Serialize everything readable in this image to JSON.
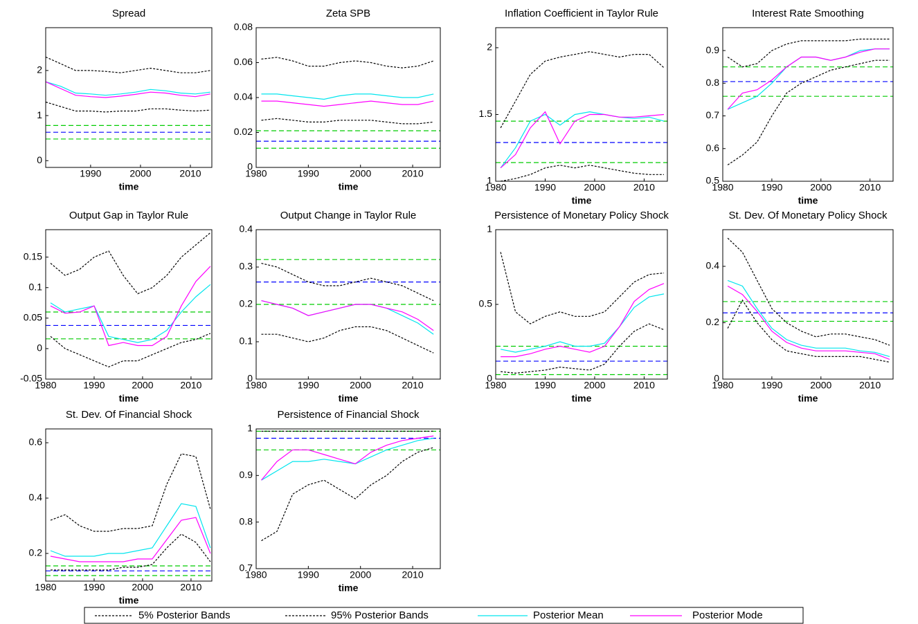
{
  "chart_data": [
    {
      "type": "line",
      "title": "Spread",
      "xlabel": "time",
      "x": [
        1981,
        1984,
        1987,
        1990,
        1993,
        1996,
        1999,
        2002,
        2005,
        2008,
        2011,
        2014
      ],
      "xlim": [
        1981,
        2014.3
      ],
      "xticks": [
        1990,
        2000,
        2010
      ],
      "ylim": [
        -0.15,
        2.95
      ],
      "yticks": [
        0,
        1,
        2
      ],
      "series": [
        {
          "values": [
            1.3,
            1.2,
            1.1,
            1.1,
            1.08,
            1.1,
            1.1,
            1.15,
            1.15,
            1.12,
            1.1,
            1.12
          ]
        },
        {
          "values": [
            2.3,
            2.15,
            2.0,
            2.0,
            1.98,
            1.95,
            2.0,
            2.05,
            2.0,
            1.95,
            1.95,
            2.0
          ]
        },
        {
          "values": [
            1.75,
            1.65,
            1.5,
            1.48,
            1.45,
            1.48,
            1.52,
            1.58,
            1.55,
            1.5,
            1.48,
            1.52
          ]
        },
        {
          "values": [
            1.75,
            1.6,
            1.45,
            1.42,
            1.4,
            1.43,
            1.47,
            1.52,
            1.5,
            1.45,
            1.42,
            1.48
          ]
        }
      ],
      "reference_lines": [
        {
          "value": 0.78,
          "color": "#00cc00"
        },
        {
          "value": 0.63,
          "color": "#0000ff"
        },
        {
          "value": 0.48,
          "color": "#00cc00"
        }
      ]
    },
    {
      "type": "line",
      "title": "Zeta SPB",
      "xlabel": "time",
      "x": [
        1981,
        1984,
        1987,
        1990,
        1993,
        1996,
        1999,
        2002,
        2005,
        2008,
        2011,
        2014
      ],
      "xlim": [
        1980,
        2015.3
      ],
      "xticks": [
        1980,
        1990,
        2000,
        2010
      ],
      "ylim": [
        0,
        0.08
      ],
      "yticks": [
        0,
        0.02,
        0.04,
        0.06,
        0.08
      ],
      "series": [
        {
          "values": [
            0.027,
            0.028,
            0.027,
            0.026,
            0.026,
            0.027,
            0.027,
            0.027,
            0.026,
            0.025,
            0.025,
            0.026
          ]
        },
        {
          "values": [
            0.062,
            0.063,
            0.061,
            0.058,
            0.058,
            0.06,
            0.061,
            0.06,
            0.058,
            0.057,
            0.058,
            0.061
          ]
        },
        {
          "values": [
            0.042,
            0.042,
            0.041,
            0.04,
            0.039,
            0.041,
            0.042,
            0.042,
            0.041,
            0.04,
            0.04,
            0.042
          ]
        },
        {
          "values": [
            0.038,
            0.038,
            0.037,
            0.036,
            0.035,
            0.036,
            0.037,
            0.038,
            0.037,
            0.036,
            0.036,
            0.038
          ]
        }
      ],
      "reference_lines": [
        {
          "value": 0.021,
          "color": "#00cc00"
        },
        {
          "value": 0.015,
          "color": "#0000ff"
        },
        {
          "value": 0.011,
          "color": "#00cc00"
        }
      ]
    },
    {
      "type": "line",
      "title": "Inflation Coefficient in Taylor Rule",
      "xlabel": "time",
      "x": [
        1981,
        1984,
        1987,
        1990,
        1993,
        1996,
        1999,
        2002,
        2005,
        2008,
        2011,
        2014
      ],
      "xlim": [
        1980,
        2014.7
      ],
      "xticks": [
        1980,
        1990,
        2000,
        2010
      ],
      "ylim": [
        1,
        2.15
      ],
      "yticks": [
        1,
        1.5,
        2
      ],
      "series": [
        {
          "values": [
            1.0,
            1.02,
            1.05,
            1.1,
            1.12,
            1.1,
            1.12,
            1.1,
            1.08,
            1.06,
            1.05,
            1.05
          ]
        },
        {
          "values": [
            1.4,
            1.6,
            1.8,
            1.9,
            1.93,
            1.95,
            1.97,
            1.95,
            1.93,
            1.95,
            1.95,
            1.85
          ]
        },
        {
          "values": [
            1.1,
            1.25,
            1.45,
            1.5,
            1.42,
            1.5,
            1.52,
            1.5,
            1.48,
            1.47,
            1.48,
            1.45
          ]
        },
        {
          "values": [
            1.1,
            1.2,
            1.4,
            1.52,
            1.28,
            1.45,
            1.5,
            1.5,
            1.48,
            1.48,
            1.49,
            1.5
          ]
        }
      ],
      "reference_lines": [
        {
          "value": 1.45,
          "color": "#00cc00"
        },
        {
          "value": 1.29,
          "color": "#0000ff"
        },
        {
          "value": 1.14,
          "color": "#00cc00"
        }
      ]
    },
    {
      "type": "line",
      "title": "Interest Rate Smoothing",
      "xlabel": "time",
      "x": [
        1981,
        1984,
        1987,
        1990,
        1993,
        1996,
        1999,
        2002,
        2005,
        2008,
        2011,
        2014
      ],
      "xlim": [
        1980,
        2014.7
      ],
      "xticks": [
        1980,
        1990,
        2000,
        2010
      ],
      "ylim": [
        0.5,
        0.97
      ],
      "yticks": [
        0.5,
        0.6,
        0.7,
        0.8,
        0.9
      ],
      "series": [
        {
          "values": [
            0.55,
            0.58,
            0.62,
            0.7,
            0.77,
            0.8,
            0.82,
            0.84,
            0.85,
            0.86,
            0.87,
            0.87
          ]
        },
        {
          "values": [
            0.88,
            0.85,
            0.86,
            0.9,
            0.92,
            0.93,
            0.93,
            0.93,
            0.93,
            0.935,
            0.935,
            0.935
          ]
        },
        {
          "values": [
            0.72,
            0.74,
            0.76,
            0.8,
            0.85,
            0.88,
            0.88,
            0.87,
            0.88,
            0.9,
            0.905,
            0.905
          ]
        },
        {
          "values": [
            0.72,
            0.77,
            0.78,
            0.81,
            0.85,
            0.88,
            0.88,
            0.87,
            0.88,
            0.895,
            0.905,
            0.905
          ]
        }
      ],
      "reference_lines": [
        {
          "value": 0.85,
          "color": "#00cc00"
        },
        {
          "value": 0.805,
          "color": "#0000ff"
        },
        {
          "value": 0.76,
          "color": "#00cc00"
        }
      ]
    },
    {
      "type": "line",
      "title": "Output Gap in Taylor Rule",
      "xlabel": "time",
      "x": [
        1981,
        1984,
        1987,
        1990,
        1993,
        1996,
        1999,
        2002,
        2005,
        2008,
        2011,
        2014
      ],
      "xlim": [
        1980,
        2014.3
      ],
      "xticks": [
        1980,
        1990,
        2000,
        2010
      ],
      "ylim": [
        -0.05,
        0.195
      ],
      "yticks": [
        -0.05,
        0,
        0.05,
        0.1,
        0.15
      ],
      "series": [
        {
          "values": [
            0.02,
            0.0,
            -0.01,
            -0.02,
            -0.03,
            -0.02,
            -0.02,
            -0.01,
            0.0,
            0.01,
            0.015,
            0.025
          ]
        },
        {
          "values": [
            0.14,
            0.12,
            0.13,
            0.15,
            0.16,
            0.12,
            0.09,
            0.1,
            0.12,
            0.15,
            0.17,
            0.19
          ]
        },
        {
          "values": [
            0.075,
            0.06,
            0.065,
            0.07,
            0.02,
            0.015,
            0.01,
            0.015,
            0.03,
            0.06,
            0.085,
            0.105
          ]
        },
        {
          "values": [
            0.07,
            0.058,
            0.06,
            0.07,
            0.005,
            0.01,
            0.005,
            0.005,
            0.02,
            0.07,
            0.11,
            0.135
          ]
        }
      ],
      "reference_lines": [
        {
          "value": 0.06,
          "color": "#00cc00"
        },
        {
          "value": 0.038,
          "color": "#0000ff"
        },
        {
          "value": 0.016,
          "color": "#00cc00"
        }
      ]
    },
    {
      "type": "line",
      "title": "Output Change in Taylor Rule",
      "xlabel": "time",
      "x": [
        1981,
        1984,
        1987,
        1990,
        1993,
        1996,
        1999,
        2002,
        2005,
        2008,
        2011,
        2014
      ],
      "xlim": [
        1980,
        2015.3
      ],
      "xticks": [
        1980,
        1990,
        2000,
        2010
      ],
      "ylim": [
        0,
        0.4
      ],
      "yticks": [
        0,
        0.1,
        0.2,
        0.3,
        0.4
      ],
      "series": [
        {
          "values": [
            0.12,
            0.12,
            0.11,
            0.1,
            0.11,
            0.13,
            0.14,
            0.14,
            0.13,
            0.11,
            0.09,
            0.07
          ]
        },
        {
          "values": [
            0.31,
            0.3,
            0.28,
            0.26,
            0.25,
            0.25,
            0.26,
            0.27,
            0.26,
            0.25,
            0.23,
            0.21
          ]
        },
        {
          "values": [
            0.21,
            0.2,
            0.19,
            0.17,
            0.18,
            0.19,
            0.2,
            0.2,
            0.19,
            0.17,
            0.15,
            0.12
          ]
        },
        {
          "values": [
            0.21,
            0.2,
            0.19,
            0.17,
            0.18,
            0.19,
            0.2,
            0.2,
            0.19,
            0.18,
            0.16,
            0.13
          ]
        }
      ],
      "reference_lines": [
        {
          "value": 0.32,
          "color": "#00cc00"
        },
        {
          "value": 0.26,
          "color": "#0000ff"
        },
        {
          "value": 0.2,
          "color": "#00cc00"
        }
      ]
    },
    {
      "type": "line",
      "title": "Persistence of Monetary Policy Shock",
      "xlabel": "time",
      "x": [
        1981,
        1984,
        1987,
        1990,
        1993,
        1996,
        1999,
        2002,
        2005,
        2008,
        2011,
        2014
      ],
      "xlim": [
        1980,
        2014.7
      ],
      "xticks": [
        1980,
        1990,
        2000,
        2010
      ],
      "ylim": [
        0,
        1
      ],
      "yticks": [
        0,
        0.5,
        1
      ],
      "series": [
        {
          "values": [
            0.05,
            0.04,
            0.05,
            0.06,
            0.08,
            0.07,
            0.06,
            0.1,
            0.22,
            0.32,
            0.37,
            0.33
          ]
        },
        {
          "values": [
            0.85,
            0.45,
            0.37,
            0.42,
            0.45,
            0.42,
            0.42,
            0.45,
            0.55,
            0.65,
            0.7,
            0.71
          ]
        },
        {
          "values": [
            0.2,
            0.18,
            0.2,
            0.22,
            0.25,
            0.22,
            0.22,
            0.24,
            0.35,
            0.48,
            0.55,
            0.57
          ]
        },
        {
          "values": [
            0.15,
            0.15,
            0.17,
            0.2,
            0.22,
            0.2,
            0.18,
            0.22,
            0.35,
            0.52,
            0.6,
            0.64
          ]
        }
      ],
      "reference_lines": [
        {
          "value": 0.22,
          "color": "#00cc00"
        },
        {
          "value": 0.12,
          "color": "#0000ff"
        },
        {
          "value": 0.03,
          "color": "#00cc00"
        }
      ]
    },
    {
      "type": "line",
      "title": "St. Dev. Of Monetary Policy Shock",
      "xlabel": "time",
      "x": [
        1981,
        1984,
        1987,
        1990,
        1993,
        1996,
        1999,
        2002,
        2005,
        2008,
        2011,
        2014
      ],
      "xlim": [
        1980,
        2014.7
      ],
      "xticks": [
        1980,
        1990,
        2000,
        2010
      ],
      "ylim": [
        0,
        0.53
      ],
      "yticks": [
        0,
        0.2,
        0.4
      ],
      "series": [
        {
          "values": [
            0.18,
            0.28,
            0.2,
            0.14,
            0.1,
            0.09,
            0.08,
            0.08,
            0.08,
            0.08,
            0.07,
            0.06
          ]
        },
        {
          "values": [
            0.5,
            0.45,
            0.35,
            0.25,
            0.2,
            0.17,
            0.15,
            0.16,
            0.16,
            0.15,
            0.14,
            0.12
          ]
        },
        {
          "values": [
            0.35,
            0.33,
            0.25,
            0.18,
            0.14,
            0.12,
            0.11,
            0.11,
            0.11,
            0.1,
            0.095,
            0.08
          ]
        },
        {
          "values": [
            0.33,
            0.3,
            0.24,
            0.17,
            0.13,
            0.11,
            0.1,
            0.1,
            0.1,
            0.095,
            0.09,
            0.07
          ]
        }
      ],
      "reference_lines": [
        {
          "value": 0.275,
          "color": "#00cc00"
        },
        {
          "value": 0.235,
          "color": "#0000ff"
        },
        {
          "value": 0.205,
          "color": "#00cc00"
        }
      ]
    },
    {
      "type": "line",
      "title": "St. Dev. Of Financial Shock",
      "xlabel": "time",
      "x": [
        1981,
        1984,
        1987,
        1990,
        1993,
        1996,
        1999,
        2002,
        2005,
        2008,
        2011,
        2014
      ],
      "xlim": [
        1980,
        2014.3
      ],
      "xticks": [
        1980,
        1990,
        2000,
        2010
      ],
      "ylim": [
        0.1,
        0.65
      ],
      "yticks": [
        0.2,
        0.4,
        0.6
      ],
      "series": [
        {
          "values": [
            0.14,
            0.14,
            0.14,
            0.14,
            0.14,
            0.15,
            0.15,
            0.16,
            0.22,
            0.27,
            0.24,
            0.17
          ]
        },
        {
          "values": [
            0.32,
            0.34,
            0.3,
            0.28,
            0.28,
            0.29,
            0.29,
            0.3,
            0.45,
            0.56,
            0.55,
            0.36
          ]
        },
        {
          "values": [
            0.21,
            0.19,
            0.19,
            0.19,
            0.2,
            0.2,
            0.21,
            0.22,
            0.3,
            0.38,
            0.37,
            0.22
          ]
        },
        {
          "values": [
            0.19,
            0.18,
            0.17,
            0.17,
            0.17,
            0.17,
            0.18,
            0.18,
            0.25,
            0.32,
            0.33,
            0.2
          ]
        }
      ],
      "reference_lines": [
        {
          "value": 0.155,
          "color": "#00cc00"
        },
        {
          "value": 0.137,
          "color": "#0000ff"
        },
        {
          "value": 0.12,
          "color": "#00cc00"
        }
      ]
    },
    {
      "type": "line",
      "title": "Persistence of Financial Shock",
      "xlabel": "time",
      "x": [
        1981,
        1984,
        1987,
        1990,
        1993,
        1996,
        1999,
        2002,
        2005,
        2008,
        2011,
        2014
      ],
      "xlim": [
        1980,
        2015.3
      ],
      "xticks": [
        1980,
        1990,
        2000,
        2010
      ],
      "ylim": [
        0.7,
        1
      ],
      "yticks": [
        0.7,
        0.8,
        0.9,
        1
      ],
      "series": [
        {
          "values": [
            0.76,
            0.78,
            0.86,
            0.88,
            0.89,
            0.87,
            0.85,
            0.88,
            0.9,
            0.93,
            0.95,
            0.96
          ]
        },
        {
          "values": [
            0.995,
            0.995,
            0.995,
            0.995,
            0.995,
            0.995,
            0.995,
            0.995,
            0.995,
            0.995,
            0.995,
            0.995
          ]
        },
        {
          "values": [
            0.89,
            0.91,
            0.93,
            0.93,
            0.935,
            0.93,
            0.925,
            0.94,
            0.955,
            0.965,
            0.975,
            0.98
          ]
        },
        {
          "values": [
            0.89,
            0.93,
            0.955,
            0.955,
            0.945,
            0.935,
            0.925,
            0.95,
            0.965,
            0.975,
            0.98,
            0.985
          ]
        }
      ],
      "reference_lines": [
        {
          "value": 0.995,
          "color": "#00cc00"
        },
        {
          "value": 0.98,
          "color": "#0000ff"
        },
        {
          "value": 0.955,
          "color": "#00cc00"
        }
      ]
    }
  ],
  "legend": {
    "entries": [
      {
        "name": "5% Posterior Bands",
        "color": "#000000",
        "dashed": true
      },
      {
        "name": "95% Posterior Bands",
        "color": "#000000",
        "dashed": true
      },
      {
        "name": "Posterior Mean",
        "color": "#00e5ee",
        "dashed": false
      },
      {
        "name": "Posterior Mode",
        "color": "#ff00ff",
        "dashed": false
      }
    ]
  }
}
